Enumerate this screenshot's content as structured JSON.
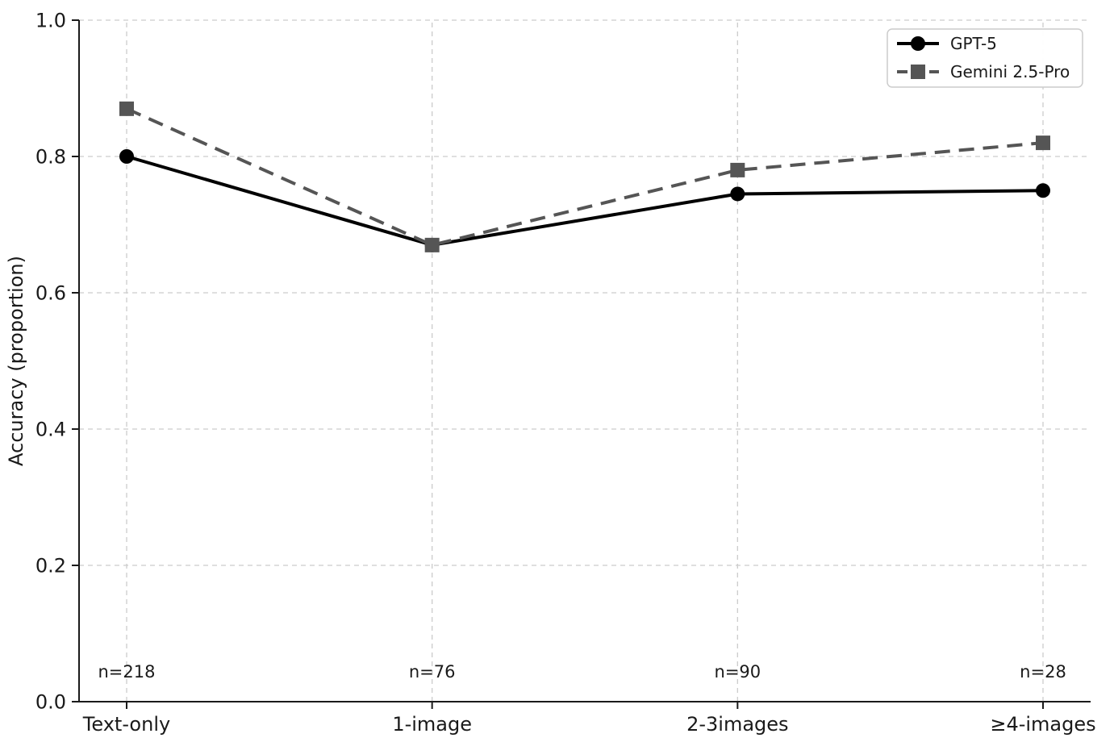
{
  "chart_data": {
    "type": "line",
    "title": "",
    "xlabel": "",
    "ylabel": "Accuracy (proportion)",
    "categories": [
      "Text-only",
      "1-image",
      "2-3images",
      "≥4-images"
    ],
    "series": [
      {
        "name": "GPT-5",
        "values": [
          0.8,
          0.67,
          0.745,
          0.75
        ],
        "color": "#000000",
        "marker": "circle",
        "line_style": "solid"
      },
      {
        "name": "Gemini 2.5-Pro",
        "values": [
          0.87,
          0.67,
          0.78,
          0.82
        ],
        "color": "#555555",
        "marker": "square",
        "line_style": "dashed"
      }
    ],
    "annotations": [
      {
        "text": "n=218",
        "category_index": 0
      },
      {
        "text": "n=76",
        "category_index": 1
      },
      {
        "text": "n=90",
        "category_index": 2
      },
      {
        "text": "n=28",
        "category_index": 3
      }
    ],
    "ylim": [
      0.0,
      1.0
    ],
    "yticks": [
      "0.0",
      "0.2",
      "0.4",
      "0.6",
      "0.8",
      "1.0"
    ],
    "grid": true,
    "grid_style": "dashed",
    "legend_position": "top-right",
    "legend_entries": [
      "GPT-5",
      "Gemini 2.5-Pro"
    ]
  },
  "colors": {
    "background": "#ffffff",
    "grid": "#cccccc",
    "axis": "#1a1a1a",
    "tick_label": "#1a1a1a",
    "annotation": "#1a1a1a",
    "legend_border": "#cccccc",
    "legend_background": "#ffffff"
  }
}
